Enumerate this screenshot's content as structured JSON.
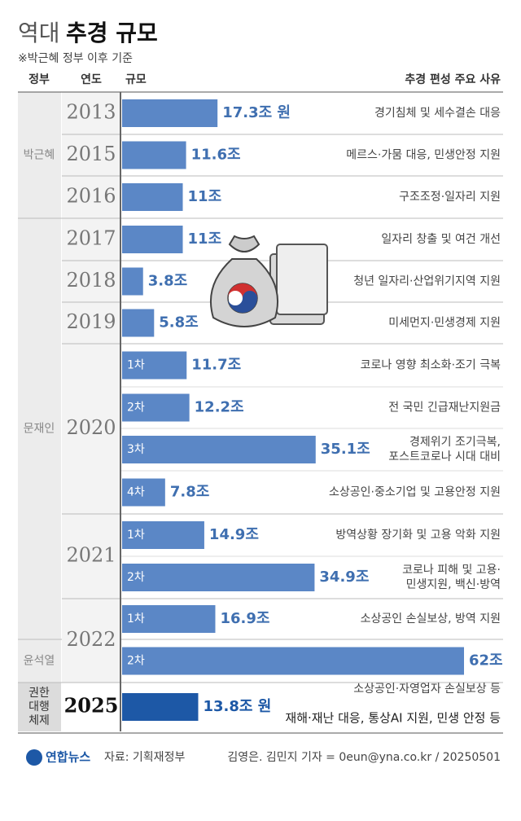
{
  "chart_data": {
    "type": "bar",
    "title": {
      "light": "역대",
      "bold": "추경 규모"
    },
    "subtitle": "※박근혜 정부 이후 기준",
    "headers": [
      "정부",
      "연도",
      "규모",
      "추경 편성 주요 사유"
    ],
    "color": "#5b87c6",
    "highlight_color": "#1d58a6",
    "rows": [
      {
        "government": "박근혜",
        "year": "2013",
        "round": null,
        "value": 17.3,
        "value_label": "17.3조 원",
        "reason": [
          "경기침체 및 세수결손 대응"
        ]
      },
      {
        "government": null,
        "year": "2015",
        "round": null,
        "value": 11.6,
        "value_label": "11.6조",
        "reason": [
          "메르스·가뭄 대응, 민생안정 지원"
        ]
      },
      {
        "government": null,
        "year": "2016",
        "round": null,
        "value": 11,
        "value_label": "11조",
        "reason": [
          "구조조정·일자리 지원"
        ]
      },
      {
        "government": "문재인",
        "year": "2017",
        "round": null,
        "value": 11,
        "value_label": "11조",
        "reason": [
          "일자리 창출 및 여건 개선"
        ]
      },
      {
        "government": null,
        "year": "2018",
        "round": null,
        "value": 3.8,
        "value_label": "3.8조",
        "reason": [
          "청년 일자리·산업위기지역 지원"
        ]
      },
      {
        "government": null,
        "year": "2019",
        "round": null,
        "value": 5.8,
        "value_label": "5.8조",
        "reason": [
          "미세먼지·민생경제 지원"
        ]
      },
      {
        "government": null,
        "year": "2020",
        "round": "1차",
        "value": 11.7,
        "value_label": "11.7조",
        "reason": [
          "코로나 영향 최소화·조기 극복"
        ]
      },
      {
        "government": null,
        "year": null,
        "round": "2차",
        "value": 12.2,
        "value_label": "12.2조",
        "reason": [
          "전 국민 긴급재난지원금"
        ]
      },
      {
        "government": null,
        "year": null,
        "round": "3차",
        "value": 35.1,
        "value_label": "35.1조",
        "reason": [
          "경제위기 조기극복,",
          "포스트코로나 시대 대비"
        ]
      },
      {
        "government": null,
        "year": null,
        "round": "4차",
        "value": 7.8,
        "value_label": "7.8조",
        "reason": [
          "소상공인·중소기업 및 고용안정 지원"
        ]
      },
      {
        "government": null,
        "year": "2021",
        "round": "1차",
        "value": 14.9,
        "value_label": "14.9조",
        "reason": [
          "방역상황 장기화 및 고용 악화 지원"
        ]
      },
      {
        "government": null,
        "year": null,
        "round": "2차",
        "value": 34.9,
        "value_label": "34.9조",
        "reason": [
          "코로나 피해 및 고용·",
          "민생지원, 백신·방역"
        ]
      },
      {
        "government": null,
        "year": "2022",
        "round": "1차",
        "value": 16.9,
        "value_label": "16.9조",
        "reason": [
          "소상공인 손실보상, 방역 지원"
        ]
      },
      {
        "government": "윤석열",
        "year": null,
        "round": "2차",
        "value": 62,
        "value_label": "62조",
        "reason": [
          "소상공인·자영업자 손실보상 등"
        ]
      },
      {
        "government": [
          "권한",
          "대행",
          "체제"
        ],
        "year": "2025",
        "round": null,
        "value": 13.8,
        "value_label": "13.8조 원",
        "reason": [
          "재해·재난 대응, 통상AI 지원, 민생 안정 등"
        ],
        "highlight": true
      }
    ],
    "footer": {
      "logo": "연합뉴스",
      "source": "자료: 기획재정부",
      "credit": "김영은. 김민지 기자 = 0eun@yna.co.kr / 20250501"
    }
  }
}
